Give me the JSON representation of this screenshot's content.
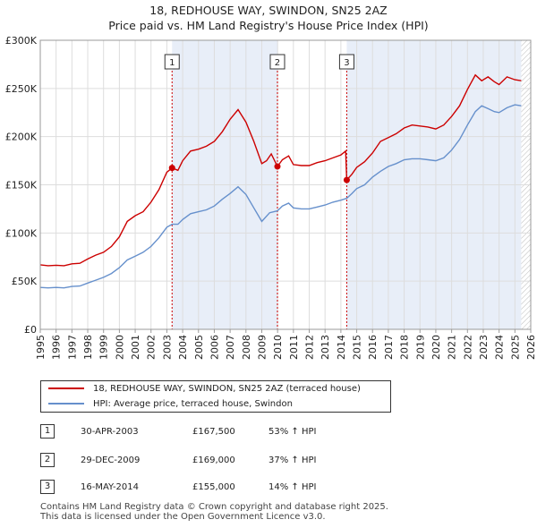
{
  "chart_data": {
    "type": "line",
    "title": "18, REDHOUSE WAY, SWINDON, SN25 2AZ",
    "subtitle": "Price paid vs. HM Land Registry's House Price Index (HPI)",
    "xlabel": "",
    "ylabel": "",
    "xlim": [
      1995,
      2026
    ],
    "ylim": [
      0,
      300000
    ],
    "yticks": [
      0,
      50000,
      100000,
      150000,
      200000,
      250000,
      300000
    ],
    "ytick_labels": [
      "£0",
      "£50K",
      "£100K",
      "£150K",
      "£200K",
      "£250K",
      "£300K"
    ],
    "xtick_labels": [
      "1995",
      "1996",
      "1997",
      "1998",
      "1999",
      "2000",
      "2001",
      "2002",
      "2003",
      "2004",
      "2005",
      "2006",
      "2007",
      "2008",
      "2009",
      "2010",
      "2011",
      "2012",
      "2013",
      "2014",
      "2015",
      "2016",
      "2017",
      "2018",
      "2019",
      "2020",
      "2021",
      "2022",
      "2023",
      "2024",
      "2025",
      "2026"
    ],
    "grid": true,
    "colors": {
      "property": "#cc0000",
      "hpi": "#6690cc",
      "plot_bg": "#ffffff",
      "grid": "#dddddd",
      "shade": "#e8eef8",
      "hatch": "#cccccc",
      "marker_line": "#cc0000"
    },
    "series": [
      {
        "name": "18, REDHOUSE WAY, SWINDON, SN25 2AZ (terraced house)",
        "key": "property",
        "points": [
          [
            1995.0,
            67000
          ],
          [
            1995.5,
            66000
          ],
          [
            1996.0,
            66500
          ],
          [
            1996.5,
            66000
          ],
          [
            1997.0,
            68000
          ],
          [
            1997.5,
            68500
          ],
          [
            1998.0,
            73000
          ],
          [
            1998.5,
            77000
          ],
          [
            1999.0,
            80000
          ],
          [
            1999.5,
            86000
          ],
          [
            2000.0,
            96000
          ],
          [
            2000.5,
            112000
          ],
          [
            2001.0,
            118000
          ],
          [
            2001.5,
            122000
          ],
          [
            2002.0,
            132000
          ],
          [
            2002.5,
            145000
          ],
          [
            2003.0,
            163000
          ],
          [
            2003.33,
            167500
          ],
          [
            2003.7,
            165000
          ],
          [
            2004.0,
            175000
          ],
          [
            2004.5,
            185000
          ],
          [
            2005.0,
            187000
          ],
          [
            2005.5,
            190000
          ],
          [
            2006.0,
            195000
          ],
          [
            2006.5,
            205000
          ],
          [
            2007.0,
            218000
          ],
          [
            2007.5,
            228000
          ],
          [
            2008.0,
            215000
          ],
          [
            2008.5,
            195000
          ],
          [
            2009.0,
            172000
          ],
          [
            2009.3,
            175000
          ],
          [
            2009.6,
            182000
          ],
          [
            2009.99,
            169000
          ],
          [
            2010.3,
            176000
          ],
          [
            2010.7,
            180000
          ],
          [
            2011.0,
            171000
          ],
          [
            2011.5,
            170000
          ],
          [
            2012.0,
            170000
          ],
          [
            2012.5,
            173000
          ],
          [
            2013.0,
            175000
          ],
          [
            2013.5,
            178000
          ],
          [
            2014.0,
            181000
          ],
          [
            2014.3,
            185000
          ],
          [
            2014.37,
            155000
          ],
          [
            2014.7,
            161000
          ],
          [
            2015.0,
            168000
          ],
          [
            2015.5,
            174000
          ],
          [
            2016.0,
            183000
          ],
          [
            2016.5,
            195000
          ],
          [
            2017.0,
            199000
          ],
          [
            2017.5,
            203000
          ],
          [
            2018.0,
            209000
          ],
          [
            2018.5,
            212000
          ],
          [
            2019.0,
            211000
          ],
          [
            2019.5,
            210000
          ],
          [
            2020.0,
            208000
          ],
          [
            2020.5,
            212000
          ],
          [
            2021.0,
            221000
          ],
          [
            2021.5,
            232000
          ],
          [
            2022.0,
            249000
          ],
          [
            2022.5,
            264000
          ],
          [
            2022.9,
            258000
          ],
          [
            2023.3,
            262000
          ],
          [
            2023.7,
            257000
          ],
          [
            2024.0,
            254000
          ],
          [
            2024.5,
            262000
          ],
          [
            2025.0,
            259000
          ],
          [
            2025.4,
            258000
          ]
        ]
      },
      {
        "name": "HPI: Average price, terraced house, Swindon",
        "key": "hpi",
        "points": [
          [
            1995.0,
            43500
          ],
          [
            1995.5,
            43000
          ],
          [
            1996.0,
            43500
          ],
          [
            1996.5,
            43000
          ],
          [
            1997.0,
            44500
          ],
          [
            1997.5,
            45000
          ],
          [
            1998.0,
            48000
          ],
          [
            1998.5,
            51000
          ],
          [
            1999.0,
            54000
          ],
          [
            1999.5,
            58000
          ],
          [
            2000.0,
            64000
          ],
          [
            2000.5,
            72000
          ],
          [
            2001.0,
            76000
          ],
          [
            2001.5,
            80000
          ],
          [
            2002.0,
            86000
          ],
          [
            2002.5,
            95000
          ],
          [
            2003.0,
            106000
          ],
          [
            2003.33,
            109000
          ],
          [
            2003.7,
            109000
          ],
          [
            2004.0,
            114000
          ],
          [
            2004.5,
            120000
          ],
          [
            2005.0,
            122000
          ],
          [
            2005.5,
            124000
          ],
          [
            2006.0,
            128000
          ],
          [
            2006.5,
            135000
          ],
          [
            2007.0,
            141000
          ],
          [
            2007.5,
            148000
          ],
          [
            2008.0,
            140000
          ],
          [
            2008.5,
            126000
          ],
          [
            2009.0,
            112000
          ],
          [
            2009.5,
            121000
          ],
          [
            2009.99,
            123000
          ],
          [
            2010.3,
            128000
          ],
          [
            2010.7,
            131000
          ],
          [
            2011.0,
            126000
          ],
          [
            2011.5,
            125000
          ],
          [
            2012.0,
            125000
          ],
          [
            2012.5,
            127000
          ],
          [
            2013.0,
            129000
          ],
          [
            2013.5,
            132000
          ],
          [
            2014.0,
            134000
          ],
          [
            2014.37,
            136000
          ],
          [
            2014.7,
            141000
          ],
          [
            2015.0,
            146000
          ],
          [
            2015.5,
            150000
          ],
          [
            2016.0,
            158000
          ],
          [
            2016.5,
            164000
          ],
          [
            2017.0,
            169000
          ],
          [
            2017.5,
            172000
          ],
          [
            2018.0,
            176000
          ],
          [
            2018.5,
            177000
          ],
          [
            2019.0,
            177000
          ],
          [
            2019.5,
            176000
          ],
          [
            2020.0,
            175000
          ],
          [
            2020.5,
            178000
          ],
          [
            2021.0,
            186000
          ],
          [
            2021.5,
            197000
          ],
          [
            2022.0,
            212000
          ],
          [
            2022.5,
            226000
          ],
          [
            2022.9,
            232000
          ],
          [
            2023.3,
            229000
          ],
          [
            2023.7,
            226000
          ],
          [
            2024.0,
            225000
          ],
          [
            2024.5,
            230000
          ],
          [
            2025.0,
            233000
          ],
          [
            2025.4,
            232000
          ]
        ]
      }
    ],
    "sales": [
      {
        "label": "1",
        "year": 2003.33,
        "price": 167500
      },
      {
        "label": "2",
        "year": 2009.99,
        "price": 169000
      },
      {
        "label": "3",
        "year": 2014.37,
        "price": 155000
      }
    ],
    "shade_ranges": [
      [
        2003.33,
        2009.99
      ],
      [
        2014.37,
        2025.4
      ]
    ],
    "hatch_from": 2025.4
  },
  "legend": {
    "items": [
      {
        "label": "18, REDHOUSE WAY, SWINDON, SN25 2AZ (terraced house)",
        "color": "#cc0000"
      },
      {
        "label": "HPI: Average price, terraced house, Swindon",
        "color": "#6690cc"
      }
    ]
  },
  "sales_table": [
    {
      "num": "1",
      "date": "30-APR-2003",
      "price": "£167,500",
      "hpi": "53% ↑ HPI"
    },
    {
      "num": "2",
      "date": "29-DEC-2009",
      "price": "£169,000",
      "hpi": "37% ↑ HPI"
    },
    {
      "num": "3",
      "date": "16-MAY-2014",
      "price": "£155,000",
      "hpi": "14% ↑ HPI"
    }
  ],
  "footer": {
    "line1": "Contains HM Land Registry data © Crown copyright and database right 2025.",
    "line2": "This data is licensed under the Open Government Licence v3.0."
  }
}
